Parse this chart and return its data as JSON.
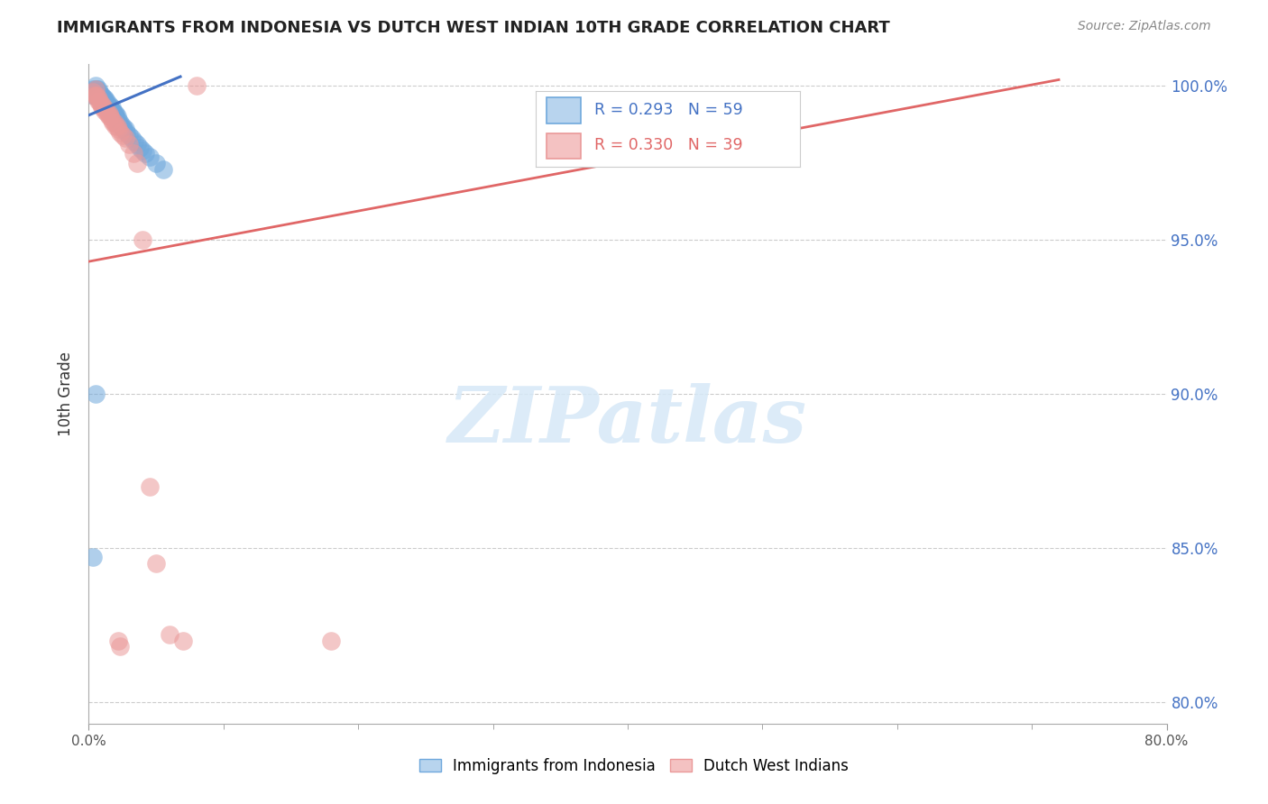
{
  "title": "IMMIGRANTS FROM INDONESIA VS DUTCH WEST INDIAN 10TH GRADE CORRELATION CHART",
  "source": "Source: ZipAtlas.com",
  "ylabel": "10th Grade",
  "xlim_pct": [
    0.0,
    0.8
  ],
  "ylim_pct": [
    0.793,
    1.007
  ],
  "ytick_vals": [
    0.8,
    0.85,
    0.9,
    0.95,
    1.0
  ],
  "ytick_labels": [
    "80.0%",
    "85.0%",
    "90.0%",
    "95.0%",
    "100.0%"
  ],
  "xtick_vals": [
    0.0,
    0.8
  ],
  "xtick_labels": [
    "0.0%",
    "80.0%"
  ],
  "legend1_text": "R = 0.293   N = 59",
  "legend2_text": "R = 0.330   N = 39",
  "legend_color1": "#6fa8dc",
  "legend_color2": "#ea9999",
  "line1_color": "#4472c4",
  "line2_color": "#e06666",
  "watermark": "ZIPatlas",
  "watermark_color": "#d6e8f7",
  "grid_color": "#cccccc",
  "indo_x": [
    0.003,
    0.004,
    0.004,
    0.005,
    0.005,
    0.005,
    0.006,
    0.006,
    0.007,
    0.007,
    0.008,
    0.008,
    0.008,
    0.009,
    0.009,
    0.01,
    0.01,
    0.01,
    0.011,
    0.011,
    0.012,
    0.012,
    0.013,
    0.013,
    0.014,
    0.014,
    0.015,
    0.015,
    0.016,
    0.016,
    0.017,
    0.017,
    0.018,
    0.018,
    0.019,
    0.019,
    0.02,
    0.02,
    0.021,
    0.022,
    0.022,
    0.023,
    0.024,
    0.025,
    0.026,
    0.027,
    0.028,
    0.03,
    0.032,
    0.034,
    0.036,
    0.038,
    0.04,
    0.042,
    0.045,
    0.05,
    0.055,
    0.005,
    0.003
  ],
  "indo_y": [
    0.999,
    0.998,
    0.997,
    1.0,
    0.999,
    0.998,
    0.999,
    0.998,
    0.999,
    0.997,
    0.998,
    0.997,
    0.996,
    0.997,
    0.996,
    0.997,
    0.996,
    0.995,
    0.996,
    0.995,
    0.996,
    0.995,
    0.995,
    0.994,
    0.994,
    0.993,
    0.994,
    0.993,
    0.993,
    0.992,
    0.993,
    0.992,
    0.992,
    0.991,
    0.991,
    0.99,
    0.991,
    0.99,
    0.99,
    0.989,
    0.988,
    0.988,
    0.987,
    0.987,
    0.986,
    0.986,
    0.985,
    0.984,
    0.983,
    0.982,
    0.981,
    0.98,
    0.979,
    0.978,
    0.977,
    0.975,
    0.973,
    0.9,
    0.847
  ],
  "dutch_x": [
    0.003,
    0.004,
    0.005,
    0.005,
    0.006,
    0.007,
    0.007,
    0.008,
    0.009,
    0.01,
    0.01,
    0.011,
    0.012,
    0.013,
    0.014,
    0.015,
    0.015,
    0.016,
    0.017,
    0.018,
    0.019,
    0.02,
    0.021,
    0.022,
    0.023,
    0.025,
    0.027,
    0.03,
    0.033,
    0.036,
    0.04,
    0.045,
    0.05,
    0.06,
    0.07,
    0.08,
    0.18,
    0.023,
    0.022
  ],
  "dutch_y": [
    0.998,
    0.997,
    0.999,
    0.997,
    0.997,
    0.996,
    0.995,
    0.995,
    0.994,
    0.994,
    0.993,
    0.993,
    0.992,
    0.992,
    0.991,
    0.991,
    0.99,
    0.99,
    0.989,
    0.988,
    0.988,
    0.987,
    0.987,
    0.986,
    0.985,
    0.984,
    0.983,
    0.981,
    0.978,
    0.975,
    0.95,
    0.87,
    0.845,
    0.822,
    0.82,
    1.0,
    0.82,
    0.818,
    0.82
  ],
  "blue_line_x": [
    0.0,
    0.068
  ],
  "blue_line_y": [
    0.9905,
    1.003
  ],
  "pink_line_x": [
    0.0,
    0.72
  ],
  "pink_line_y": [
    0.943,
    1.002
  ]
}
